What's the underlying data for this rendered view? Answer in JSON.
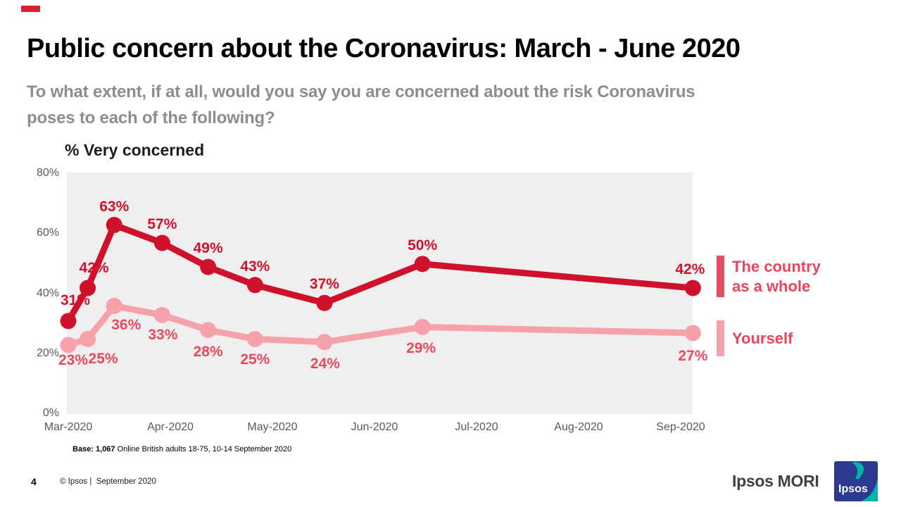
{
  "slide": {
    "title": "Public concern about the Coronavirus: March - June 2020",
    "subtitle_line1": "To what extent, if at all, would you say you are concerned about the risk Coronavirus",
    "subtitle_line2": "poses to each of the following?",
    "accent_color": "#da2133"
  },
  "chart_data": {
    "type": "line",
    "title": "% Very concerned",
    "xlabel": "",
    "ylabel": "",
    "ylim": [
      0,
      80
    ],
    "grid": false,
    "plot_background": "#f0efef",
    "legend_position": "right",
    "y_ticks": [
      "80%",
      "60%",
      "40%",
      "20%",
      "0%"
    ],
    "x_ticks": [
      "Mar-2020",
      "Apr-2020",
      "May-2020",
      "Jun-2020",
      "Jul-2020",
      "Aug-2020",
      "Sep-2020"
    ],
    "x_month_positions": [
      0,
      0.19,
      0.45,
      0.92,
      1.37,
      1.83,
      2.51,
      3.47,
      6.12
    ],
    "series": [
      {
        "name": "The country as a whole",
        "color": "#d0112b",
        "label_color": "#d0112b",
        "values": [
          31,
          42,
          63,
          57,
          49,
          43,
          37,
          50,
          42
        ],
        "label_dx": [
          10,
          9,
          0,
          0,
          0,
          0,
          0,
          0,
          -4
        ],
        "label_dy": [
          -29,
          -28,
          -25,
          -26,
          -26,
          -26,
          -26,
          -26,
          -26
        ]
      },
      {
        "name": "Yourself",
        "color": "#f5a2ab",
        "label_color": "#e8495e",
        "values": [
          23,
          25,
          36,
          33,
          28,
          25,
          24,
          29,
          27
        ],
        "label_dx": [
          7,
          22,
          17,
          1,
          0,
          0,
          1,
          -2,
          0
        ],
        "label_dy": [
          22,
          29,
          27,
          29,
          31,
          30,
          31,
          31,
          33
        ]
      }
    ]
  },
  "legend": {
    "items": [
      {
        "label_line1": "The country",
        "label_line2": "as a whole",
        "bar_color": "#e84c5f",
        "text_color": "#e8455c"
      },
      {
        "label_line1": "Yourself",
        "label_line2": "",
        "bar_color": "#f5a2ab",
        "text_color": "#e8455c"
      }
    ]
  },
  "base_note": {
    "bold": "Base: 1,067",
    "rest": " Online British adults 18-75, 10-14 September 2020"
  },
  "footer": {
    "page_number": "4",
    "copyright": "© Ipsos |  September 2020",
    "brand": "Ipsos MORI",
    "logo_text": "Ipsos",
    "logo_colors": {
      "blue": "#2b3990",
      "teal": "#00b2a9"
    }
  }
}
